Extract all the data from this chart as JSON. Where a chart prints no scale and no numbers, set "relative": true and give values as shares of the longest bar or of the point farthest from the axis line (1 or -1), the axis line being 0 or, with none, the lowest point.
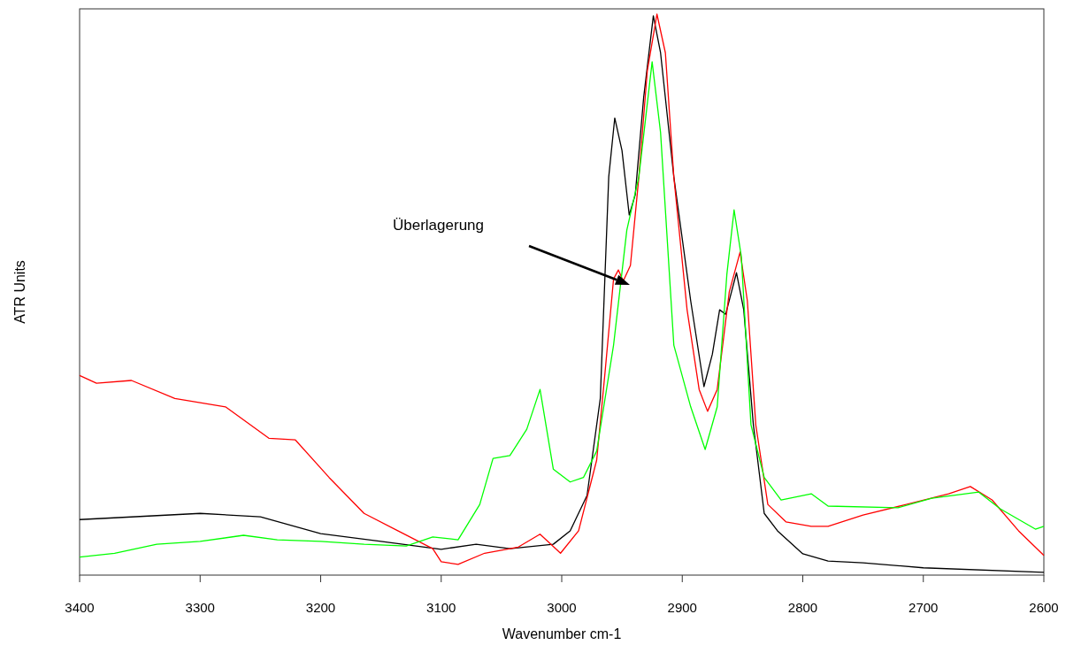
{
  "chart_data": {
    "type": "line",
    "relative": true,
    "xlabel": "Wavenumber cm-1",
    "ylabel": "ATR Units",
    "xlim": [
      3400,
      2600
    ],
    "xticks": [
      3400,
      3300,
      3200,
      3100,
      3000,
      2900,
      2800,
      2700,
      2600
    ],
    "marker": "none",
    "line_style": "solid",
    "annotations": [
      "Überlagerung"
    ],
    "series": [
      {
        "color": "#000000",
        "x": [
          3400,
          3300,
          3250,
          3200,
          3150,
          3100,
          3071,
          3043,
          3007,
          2993,
          2979,
          2968,
          2961,
          2956,
          2950,
          2944,
          2939,
          2932,
          2924,
          2918,
          2907,
          2893,
          2882,
          2875,
          2869,
          2864,
          2855,
          2849,
          2841,
          2832,
          2821,
          2800,
          2779,
          2750,
          2700,
          2600
        ],
        "values": [
          0.099,
          0.11,
          0.104,
          0.074,
          0.06,
          0.046,
          0.055,
          0.047,
          0.055,
          0.079,
          0.142,
          0.315,
          0.71,
          0.815,
          0.757,
          0.642,
          0.678,
          0.852,
          0.997,
          0.931,
          0.71,
          0.489,
          0.336,
          0.394,
          0.473,
          0.465,
          0.539,
          0.473,
          0.268,
          0.11,
          0.079,
          0.038,
          0.025,
          0.022,
          0.013,
          0.005
        ]
      },
      {
        "color": "#ff0000",
        "x": [
          3400,
          3386,
          3357,
          3321,
          3279,
          3243,
          3221,
          3193,
          3164,
          3136,
          3107,
          3100,
          3086,
          3064,
          3036,
          3018,
          3001,
          2986,
          2971,
          2964,
          2957,
          2953,
          2949,
          2943,
          2936,
          2929,
          2921,
          2914,
          2907,
          2896,
          2886,
          2879,
          2871,
          2861,
          2852,
          2846,
          2839,
          2829,
          2814,
          2793,
          2779,
          2750,
          2714,
          2679,
          2661,
          2643,
          2621,
          2600
        ],
        "values": [
          0.356,
          0.342,
          0.347,
          0.315,
          0.3,
          0.244,
          0.241,
          0.174,
          0.11,
          0.079,
          0.047,
          0.024,
          0.019,
          0.039,
          0.05,
          0.073,
          0.039,
          0.079,
          0.205,
          0.363,
          0.528,
          0.544,
          0.524,
          0.552,
          0.71,
          0.899,
          1,
          0.931,
          0.71,
          0.473,
          0.331,
          0.292,
          0.331,
          0.505,
          0.576,
          0.489,
          0.268,
          0.126,
          0.095,
          0.087,
          0.087,
          0.107,
          0.126,
          0.145,
          0.158,
          0.134,
          0.079,
          0.035
        ]
      },
      {
        "color": "#00ff00",
        "x": [
          3400,
          3371,
          3336,
          3300,
          3264,
          3236,
          3200,
          3164,
          3129,
          3107,
          3086,
          3068,
          3057,
          3043,
          3029,
          3018,
          3007,
          2993,
          2982,
          2971,
          2957,
          2946,
          2936,
          2925,
          2918,
          2907,
          2893,
          2881,
          2871,
          2863,
          2857,
          2851,
          2843,
          2832,
          2818,
          2793,
          2779,
          2721,
          2693,
          2654,
          2636,
          2607,
          2600
        ],
        "values": [
          0.032,
          0.039,
          0.055,
          0.06,
          0.071,
          0.063,
          0.06,
          0.055,
          0.052,
          0.068,
          0.063,
          0.126,
          0.208,
          0.213,
          0.26,
          0.331,
          0.189,
          0.166,
          0.174,
          0.221,
          0.41,
          0.615,
          0.71,
          0.915,
          0.789,
          0.41,
          0.3,
          0.224,
          0.3,
          0.536,
          0.651,
          0.568,
          0.268,
          0.174,
          0.134,
          0.145,
          0.123,
          0.12,
          0.137,
          0.148,
          0.118,
          0.082,
          0.087
        ]
      }
    ]
  }
}
